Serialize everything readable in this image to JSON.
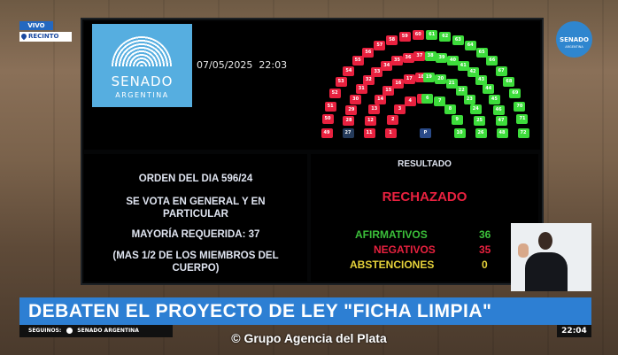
{
  "overlay": {
    "live_tag": "VIVO",
    "location_tag": "RECINTO",
    "channel_logo": "SENADO ARGENTINA"
  },
  "board": {
    "logo_title": "SENADO",
    "logo_subtitle": "ARGENTINA",
    "datetime": "07/05/2025  22:03",
    "seat_map": {
      "colors": {
        "negative": "#e8213f",
        "affirmative": "#3ddc3b",
        "absent": "#243a5a",
        "president": "#2a4a88"
      },
      "president_label": "P",
      "rows": [
        {
          "left": [
            49,
            50,
            51,
            52,
            53,
            54,
            55,
            56,
            57,
            58,
            59,
            60
          ],
          "right": [
            61,
            62,
            63,
            64,
            65,
            66,
            67,
            68,
            69,
            70,
            71,
            72
          ]
        },
        {
          "left": [
            27,
            28,
            29,
            30,
            31,
            32,
            33,
            34,
            35,
            36,
            37
          ],
          "right": [
            38,
            39,
            40,
            41,
            42,
            43,
            44,
            45,
            46,
            47,
            48
          ]
        },
        {
          "left": [
            11,
            12,
            13,
            14,
            15,
            16,
            17,
            18
          ],
          "right": [
            19,
            20,
            21,
            22,
            23,
            24,
            25,
            26
          ]
        },
        {
          "left": [
            1,
            2,
            3,
            4,
            5
          ],
          "right": [
            6,
            7,
            8,
            9,
            10
          ]
        }
      ],
      "absent_seats": [
        27
      ]
    },
    "left_panel": {
      "order": "ORDEN DEL DIA 596/24",
      "vote_type_1": "SE VOTA EN GENERAL Y EN",
      "vote_type_2": "PARTICULAR",
      "majority": "MAYORÍA REQUERIDA: 37",
      "note_1": "(MAS 1/2 DE LOS MIEMBROS DEL",
      "note_2": "CUERPO)"
    },
    "right_panel": {
      "header": "RESULTADO",
      "result": "RECHAZADO",
      "tallies": [
        {
          "label": "AFIRMATIVOS",
          "value": "36",
          "color": "#3bbf3a"
        },
        {
          "label": "NEGATIVOS",
          "value": "35",
          "color": "#e8213f"
        },
        {
          "label": "ABSTENCIONES",
          "value": "0",
          "color": "#e6d23a"
        }
      ]
    }
  },
  "lower_third": {
    "headline": "DEBATEN EL PROYECTO DE LEY \"FICHA LIMPIA\"",
    "follow_label": "SEGUINOS:",
    "follow_handle": "SENADO ARGENTINA",
    "time": "22:04"
  },
  "watermark": "© Grupo Agencia del Plata"
}
